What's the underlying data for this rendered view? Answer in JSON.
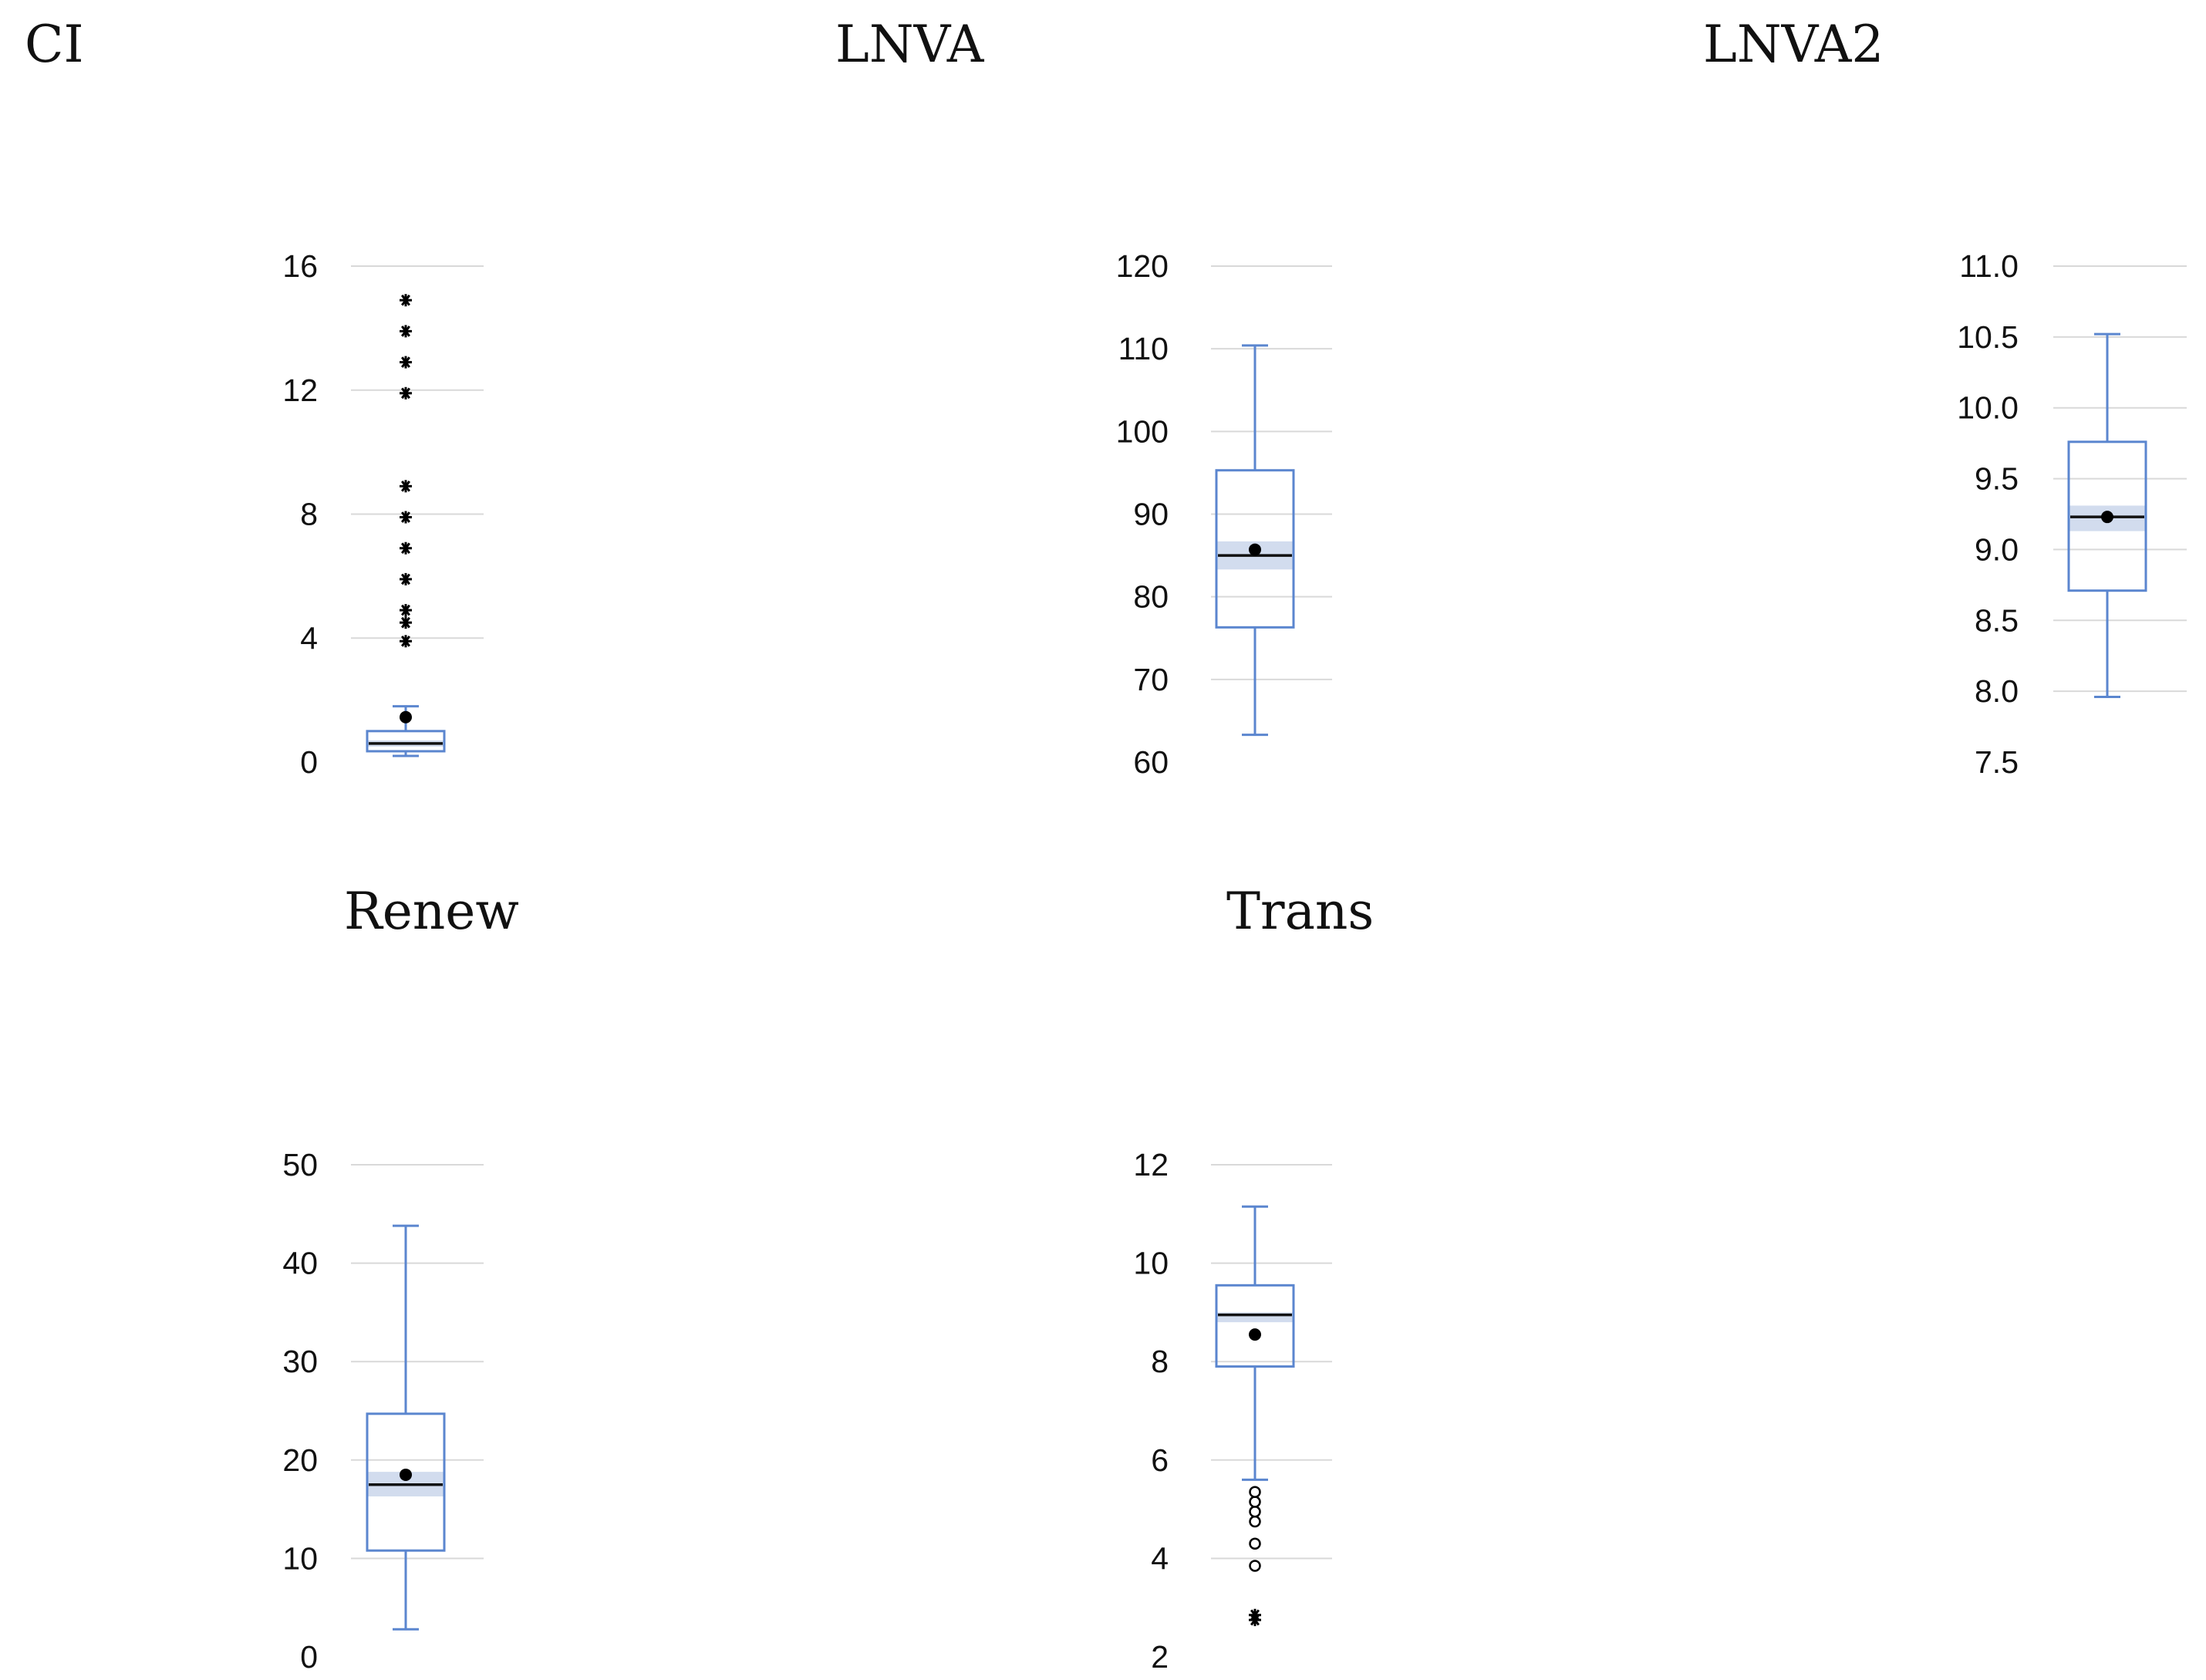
{
  "chart_data": [
    {
      "type": "box",
      "title": "CI",
      "ylim": [
        0,
        16
      ],
      "ticks": [
        0,
        4,
        8,
        12,
        16
      ],
      "tick_labels": [
        "0",
        "4",
        "8",
        "12",
        "16"
      ],
      "box": {
        "min": 0.2,
        "q1": 0.35,
        "median": 0.6,
        "q3": 1.0,
        "max": 1.8,
        "mean": 1.45,
        "ci_low": 0.5,
        "ci_high": 0.7
      },
      "outliers_extreme": [
        3.9,
        4.5,
        4.9,
        5.9,
        6.9,
        7.9,
        8.9,
        11.9,
        12.9,
        13.9,
        14.9
      ],
      "outliers_mild": []
    },
    {
      "type": "box",
      "title": "LNVA",
      "ylim": [
        60,
        120
      ],
      "ticks": [
        60,
        70,
        80,
        90,
        100,
        110,
        120
      ],
      "tick_labels": [
        "60",
        "70",
        "80",
        "90",
        "100",
        "110",
        "120"
      ],
      "box": {
        "min": 63.3,
        "q1": 76.3,
        "median": 85.0,
        "q3": 95.3,
        "max": 110.4,
        "mean": 85.7,
        "ci_low": 83.3,
        "ci_high": 86.7
      },
      "outliers_extreme": [],
      "outliers_mild": []
    },
    {
      "type": "box",
      "title": "LNVA2",
      "ylim": [
        7.5,
        11.0
      ],
      "ticks": [
        7.5,
        8.0,
        8.5,
        9.0,
        9.5,
        10.0,
        10.5,
        11.0
      ],
      "tick_labels": [
        "7.5",
        "8.0",
        "8.5",
        "9.0",
        "9.5",
        "10.0",
        "10.5",
        "11.0"
      ],
      "box": {
        "min": 7.96,
        "q1": 8.71,
        "median": 9.23,
        "q3": 9.76,
        "max": 10.52,
        "mean": 9.23,
        "ci_low": 9.13,
        "ci_high": 9.31
      },
      "outliers_extreme": [],
      "outliers_mild": []
    },
    {
      "type": "box",
      "title": "Renew",
      "ylim": [
        0,
        50
      ],
      "ticks": [
        0,
        10,
        20,
        30,
        40,
        50
      ],
      "tick_labels": [
        "0",
        "10",
        "20",
        "30",
        "40",
        "50"
      ],
      "box": {
        "min": 2.8,
        "q1": 10.8,
        "median": 17.5,
        "q3": 24.7,
        "max": 43.8,
        "mean": 18.5,
        "ci_low": 16.3,
        "ci_high": 18.8
      },
      "outliers_extreme": [],
      "outliers_mild": []
    },
    {
      "type": "box",
      "title": "Trans",
      "ylim": [
        2,
        12
      ],
      "ticks": [
        2,
        4,
        6,
        8,
        10,
        12
      ],
      "tick_labels": [
        "2",
        "4",
        "6",
        "8",
        "10",
        "12"
      ],
      "box": {
        "min": 5.6,
        "q1": 7.9,
        "median": 8.95,
        "q3": 9.55,
        "max": 11.15,
        "mean": 8.55,
        "ci_low": 8.8,
        "ci_high": 9.0
      },
      "outliers_extreme": [
        2.75,
        2.85
      ],
      "outliers_mild": [
        3.85,
        4.3,
        4.75,
        4.95,
        5.15,
        5.35
      ]
    }
  ]
}
